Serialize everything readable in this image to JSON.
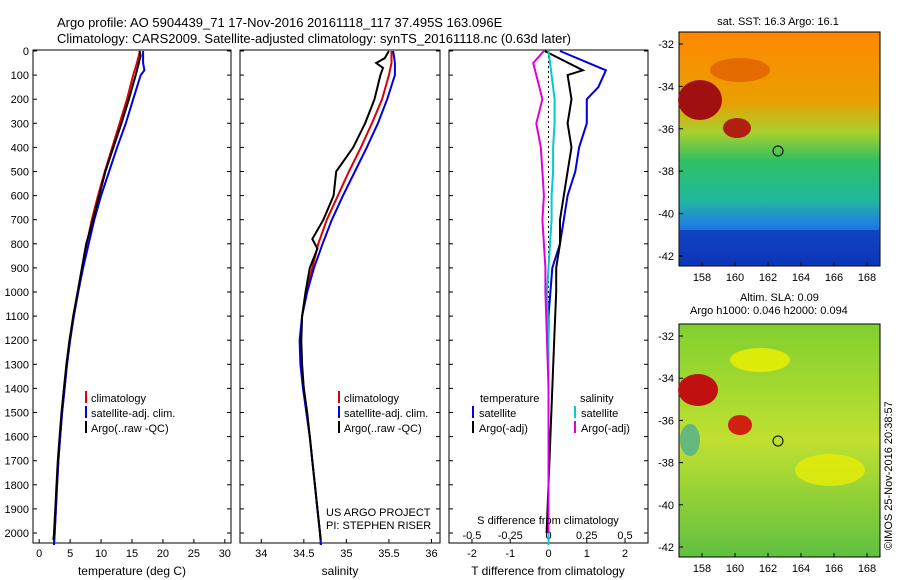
{
  "title_line1": "Argo profile: AO 5904439_71 17-Nov-2016 20161118_117 37.495S 163.096E",
  "title_line2": "Climatology: CARS2009. Satellite-adjusted climatology: synTS_20161118.nc (0.63d later)",
  "colors": {
    "climatology": "#dd0000",
    "satellite": "#0000dd",
    "argo": "#000000",
    "cyan": "#00cccc",
    "magenta": "#dd00dd"
  },
  "depth_axis": {
    "ticks": [
      "0",
      "100",
      "200",
      "300",
      "400",
      "500",
      "600",
      "700",
      "800",
      "900",
      "1000",
      "1100",
      "1200",
      "1300",
      "1400",
      "1500",
      "1600",
      "1700",
      "1800",
      "1900",
      "2000"
    ]
  },
  "temp_panel": {
    "xlabel": "temperature (deg C)",
    "xticks": [
      "0",
      "5",
      "10",
      "15",
      "20",
      "25",
      "30"
    ],
    "legend": [
      "climatology",
      "satellite-adj. clim.",
      "Argo(..raw -QC)"
    ]
  },
  "sal_panel": {
    "xlabel": "salinity",
    "xticks": [
      "34",
      "34.5",
      "35",
      "35.5",
      "36"
    ],
    "legend": [
      "climatology",
      "satellite-adj. clim.",
      "Argo(..raw -QC)"
    ],
    "note1": "US ARGO PROJECT",
    "note2": "PI: STEPHEN RISER"
  },
  "diff_panel": {
    "xlabel": "T difference from climatology",
    "xticks": [
      "-2",
      "-1",
      "0",
      "1",
      "2"
    ],
    "s_label": "S difference from climatology",
    "s_ticks": [
      "-0.5",
      "-0.25",
      "0",
      "0.25",
      "0.5"
    ],
    "legend_temp_head": "temperature",
    "legend_sal_head": "salinity",
    "legend_temp": [
      "satellite",
      "Argo(-adj)"
    ],
    "legend_sal": [
      "satellite",
      "Argo(-adj)"
    ]
  },
  "map_sst": {
    "title": "sat. SST: 16.3 Argo: 16.1",
    "yticks": [
      "-32",
      "-34",
      "-36",
      "-38",
      "-40",
      "-42"
    ],
    "xticks": [
      "158",
      "160",
      "162",
      "164",
      "166",
      "168"
    ]
  },
  "map_sla": {
    "title1": "Altim. SLA: 0.09",
    "title2": "Argo h1000: 0.046 h2000: 0.094",
    "yticks": [
      "-32",
      "-34",
      "-36",
      "-38",
      "-40",
      "-42"
    ],
    "xticks": [
      "158",
      "160",
      "162",
      "164",
      "166",
      "168"
    ]
  },
  "credit": "©IMOS 25-Nov-2016 20:38:57",
  "chart_data": [
    {
      "type": "line",
      "title": "",
      "xlabel": "temperature (deg C)",
      "ylabel": "",
      "xlim": [
        -1,
        31
      ],
      "ylim": [
        2050,
        0
      ],
      "series": [
        {
          "name": "climatology",
          "points": [
            [
              16.3,
              0
            ],
            [
              15.8,
              50
            ],
            [
              15.2,
              100
            ],
            [
              14.2,
              200
            ],
            [
              13.0,
              300
            ],
            [
              11.8,
              400
            ],
            [
              10.6,
              500
            ],
            [
              9.5,
              600
            ],
            [
              8.5,
              700
            ],
            [
              7.7,
              800
            ],
            [
              7.0,
              900
            ],
            [
              6.3,
              1000
            ],
            [
              5.6,
              1100
            ],
            [
              5.0,
              1200
            ],
            [
              4.5,
              1300
            ],
            [
              4.1,
              1400
            ],
            [
              3.7,
              1500
            ],
            [
              3.4,
              1600
            ],
            [
              3.1,
              1700
            ],
            [
              2.9,
              1800
            ],
            [
              2.7,
              1900
            ],
            [
              2.5,
              2000
            ],
            [
              2.4,
              2050
            ]
          ]
        },
        {
          "name": "satellite-adj. clim.",
          "points": [
            [
              16.8,
              0
            ],
            [
              16.8,
              50
            ],
            [
              17.0,
              80
            ],
            [
              16.4,
              100
            ],
            [
              15.2,
              200
            ],
            [
              14.0,
              300
            ],
            [
              12.6,
              400
            ],
            [
              11.3,
              500
            ],
            [
              10.0,
              600
            ],
            [
              8.9,
              700
            ],
            [
              8.0,
              800
            ],
            [
              7.1,
              900
            ],
            [
              6.3,
              1000
            ],
            [
              5.6,
              1100
            ],
            [
              5.0,
              1200
            ],
            [
              4.5,
              1300
            ],
            [
              4.1,
              1400
            ],
            [
              3.7,
              1500
            ],
            [
              3.4,
              1600
            ],
            [
              3.1,
              1700
            ],
            [
              2.9,
              1800
            ],
            [
              2.7,
              1900
            ],
            [
              2.5,
              2000
            ],
            [
              2.4,
              2050
            ]
          ]
        },
        {
          "name": "Argo(..raw -QC)",
          "points": [
            [
              16.2,
              0
            ],
            [
              16.4,
              20
            ],
            [
              16.2,
              40
            ],
            [
              16.0,
              60
            ],
            [
              15.6,
              100
            ],
            [
              14.5,
              200
            ],
            [
              13.3,
              300
            ],
            [
              12.0,
              400
            ],
            [
              10.7,
              500
            ],
            [
              9.7,
              600
            ],
            [
              8.7,
              700
            ],
            [
              7.6,
              800
            ],
            [
              6.9,
              900
            ],
            [
              6.2,
              1000
            ],
            [
              5.5,
              1100
            ],
            [
              4.9,
              1200
            ],
            [
              4.4,
              1300
            ],
            [
              4.0,
              1400
            ],
            [
              3.6,
              1500
            ],
            [
              3.3,
              1600
            ],
            [
              3.0,
              1700
            ],
            [
              2.8,
              1800
            ],
            [
              2.6,
              1900
            ],
            [
              2.4,
              2000
            ],
            [
              2.3,
              2030
            ]
          ]
        }
      ]
    },
    {
      "type": "line",
      "title": "",
      "xlabel": "salinity",
      "ylabel": "",
      "xlim": [
        33.75,
        36.1
      ],
      "ylim": [
        2050,
        0
      ],
      "series": [
        {
          "name": "climatology",
          "points": [
            [
              35.53,
              0
            ],
            [
              35.53,
              50
            ],
            [
              35.5,
              100
            ],
            [
              35.42,
              200
            ],
            [
              35.3,
              300
            ],
            [
              35.17,
              400
            ],
            [
              35.03,
              500
            ],
            [
              34.9,
              600
            ],
            [
              34.77,
              700
            ],
            [
              34.67,
              800
            ],
            [
              34.6,
              900
            ],
            [
              34.53,
              1000
            ],
            [
              34.48,
              1100
            ],
            [
              34.46,
              1200
            ],
            [
              34.47,
              1300
            ],
            [
              34.5,
              1400
            ],
            [
              34.53,
              1500
            ],
            [
              34.57,
              1600
            ],
            [
              34.6,
              1700
            ],
            [
              34.63,
              1800
            ],
            [
              34.66,
              1900
            ],
            [
              34.69,
              2000
            ],
            [
              34.7,
              2050
            ]
          ]
        },
        {
          "name": "satellite-adj. clim.",
          "points": [
            [
              35.55,
              0
            ],
            [
              35.57,
              50
            ],
            [
              35.57,
              100
            ],
            [
              35.48,
              200
            ],
            [
              35.37,
              300
            ],
            [
              35.24,
              400
            ],
            [
              35.1,
              500
            ],
            [
              34.96,
              600
            ],
            [
              34.83,
              700
            ],
            [
              34.72,
              800
            ],
            [
              34.62,
              900
            ],
            [
              34.54,
              1000
            ],
            [
              34.48,
              1100
            ],
            [
              34.45,
              1200
            ],
            [
              34.46,
              1300
            ],
            [
              34.49,
              1400
            ],
            [
              34.53,
              1500
            ],
            [
              34.57,
              1600
            ],
            [
              34.6,
              1700
            ],
            [
              34.63,
              1800
            ],
            [
              34.66,
              1900
            ],
            [
              34.69,
              2000
            ],
            [
              34.7,
              2050
            ]
          ]
        },
        {
          "name": "Argo(..raw -QC)",
          "points": [
            [
              35.5,
              0
            ],
            [
              35.45,
              30
            ],
            [
              35.35,
              50
            ],
            [
              35.43,
              70
            ],
            [
              35.4,
              100
            ],
            [
              35.33,
              200
            ],
            [
              35.22,
              300
            ],
            [
              35.08,
              400
            ],
            [
              34.98,
              450
            ],
            [
              34.88,
              500
            ],
            [
              34.85,
              600
            ],
            [
              34.73,
              700
            ],
            [
              34.6,
              780
            ],
            [
              34.66,
              820
            ],
            [
              34.57,
              900
            ],
            [
              34.52,
              1000
            ],
            [
              34.48,
              1100
            ],
            [
              34.47,
              1200
            ],
            [
              34.48,
              1300
            ],
            [
              34.5,
              1400
            ],
            [
              34.54,
              1500
            ],
            [
              34.57,
              1600
            ],
            [
              34.6,
              1700
            ],
            [
              34.63,
              1800
            ],
            [
              34.66,
              1900
            ],
            [
              34.69,
              2000
            ],
            [
              34.7,
              2030
            ]
          ]
        }
      ]
    },
    {
      "type": "line",
      "title": "",
      "xlabel": "T difference from climatology",
      "ylabel": "",
      "xlim": [
        -2.6,
        2.6
      ],
      "ylim": [
        2050,
        0
      ],
      "series": [
        {
          "name": "satellite",
          "points": [
            [
              0.3,
              0
            ],
            [
              1.5,
              80
            ],
            [
              1.3,
              150
            ],
            [
              1.0,
              200
            ],
            [
              1.0,
              300
            ],
            [
              0.8,
              400
            ],
            [
              0.7,
              500
            ],
            [
              0.5,
              600
            ],
            [
              0.4,
              700
            ],
            [
              0.3,
              800
            ],
            [
              0.1,
              900
            ],
            [
              0.05,
              1000
            ],
            [
              0.0,
              1100
            ],
            [
              0.0,
              1300
            ],
            [
              0.0,
              1500
            ],
            [
              0.0,
              1800
            ],
            [
              0.0,
              2050
            ]
          ]
        },
        {
          "name": "Argo(-adj)",
          "points": [
            [
              -0.1,
              0
            ],
            [
              0.4,
              40
            ],
            [
              0.9,
              80
            ],
            [
              0.5,
              100
            ],
            [
              0.6,
              200
            ],
            [
              0.5,
              300
            ],
            [
              0.6,
              400
            ],
            [
              0.5,
              500
            ],
            [
              0.4,
              600
            ],
            [
              0.3,
              700
            ],
            [
              0.3,
              800
            ],
            [
              0.2,
              900
            ],
            [
              0.2,
              1000
            ],
            [
              0.15,
              1200
            ],
            [
              0.1,
              1400
            ],
            [
              0.05,
              1600
            ],
            [
              0.0,
              1800
            ],
            [
              -0.05,
              2000
            ]
          ]
        }
      ]
    },
    {
      "type": "line",
      "title": "",
      "xlabel": "S difference from climatology",
      "ylabel": "",
      "xlim": [
        -0.65,
        0.65
      ],
      "ylim": [
        2050,
        0
      ],
      "series": [
        {
          "name": "satellite",
          "points": [
            [
              0.0,
              0
            ],
            [
              0.02,
              100
            ],
            [
              0.04,
              200
            ],
            [
              0.04,
              300
            ],
            [
              0.03,
              400
            ],
            [
              0.03,
              500
            ],
            [
              0.02,
              600
            ],
            [
              0.02,
              700
            ],
            [
              0.01,
              800
            ],
            [
              0.0,
              900
            ],
            [
              -0.01,
              1000
            ],
            [
              0.0,
              1200
            ],
            [
              0.0,
              1500
            ],
            [
              0.0,
              2050
            ]
          ]
        },
        {
          "name": "Argo(-adj)",
          "points": [
            [
              -0.03,
              0
            ],
            [
              -0.1,
              50
            ],
            [
              -0.08,
              100
            ],
            [
              -0.04,
              200
            ],
            [
              -0.08,
              300
            ],
            [
              -0.05,
              400
            ],
            [
              -0.04,
              500
            ],
            [
              -0.03,
              600
            ],
            [
              -0.04,
              700
            ],
            [
              -0.03,
              800
            ],
            [
              -0.02,
              900
            ],
            [
              -0.02,
              1000
            ],
            [
              -0.01,
              1200
            ],
            [
              0.0,
              1400
            ],
            [
              0.0,
              1600
            ],
            [
              0.0,
              1800
            ],
            [
              0.0,
              2000
            ]
          ]
        }
      ]
    }
  ]
}
